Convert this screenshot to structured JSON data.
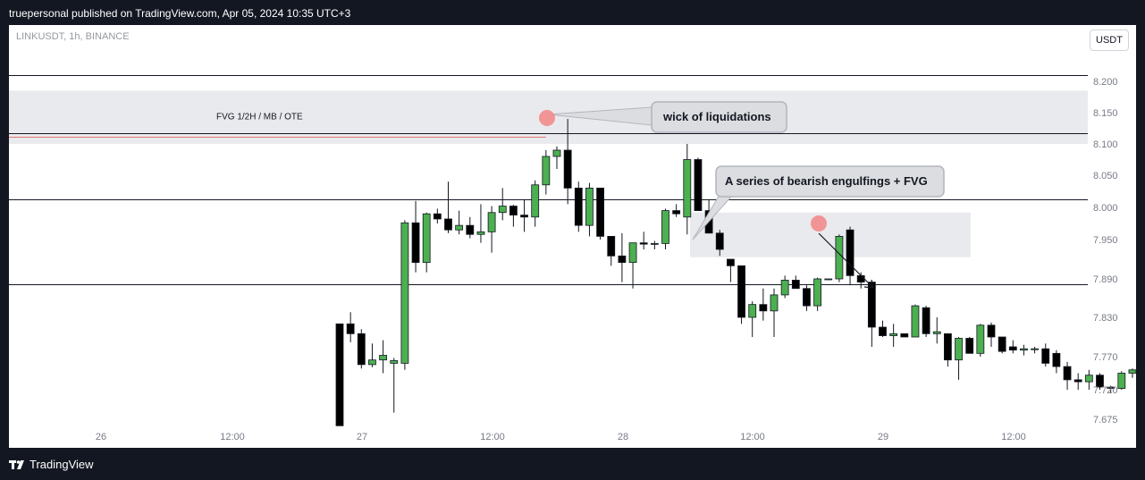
{
  "header": {
    "publish_line": "truepersonal published on TradingView.com, Apr 05, 2024 10:35 UTC+3"
  },
  "footer": {
    "brand": "TradingView"
  },
  "chart_data": {
    "type": "candlestick",
    "symbol_line": "LINKUSDT, 1h, BINANCE",
    "currency": "USDT",
    "y_ticks": [
      "8.200",
      "8.150",
      "8.100",
      "8.050",
      "8.000",
      "7.950",
      "7.890",
      "7.830",
      "7.770",
      "7.720",
      "7.675"
    ],
    "x_ticks": [
      "26",
      "12:00",
      "27",
      "12:00",
      "28",
      "12:00",
      "29",
      "12:00"
    ],
    "ylim": [
      7.675,
      8.2
    ],
    "grid": false,
    "horizontal_lines": [
      8.21,
      8.117,
      8.012,
      7.882
    ],
    "red_line": 8.112,
    "zones": [
      {
        "label": "FVG 1/2H / MB / OTE",
        "from": 8.1,
        "to": 8.185
      },
      {
        "label": "",
        "from": 7.923,
        "to": 7.992
      }
    ],
    "annotations": [
      {
        "text": "wick of liquidations"
      },
      {
        "text": "A series of bearish engulfings + FVG"
      }
    ],
    "candles": [
      [
        7.82,
        7.82,
        7.665,
        7.665
      ],
      [
        7.82,
        7.838,
        7.792,
        7.805
      ],
      [
        7.805,
        7.812,
        7.752,
        7.758
      ],
      [
        7.758,
        7.79,
        7.754,
        7.765
      ],
      [
        7.765,
        7.795,
        7.745,
        7.772
      ],
      [
        7.76,
        7.768,
        7.685,
        7.764
      ],
      [
        7.76,
        7.98,
        7.75,
        7.976
      ],
      [
        7.976,
        8.01,
        7.9,
        7.915
      ],
      [
        7.915,
        7.992,
        7.9,
        7.99
      ],
      [
        7.99,
        7.998,
        7.975,
        7.982
      ],
      [
        7.982,
        8.04,
        7.96,
        7.965
      ],
      [
        7.965,
        7.995,
        7.958,
        7.972
      ],
      [
        7.972,
        7.985,
        7.952,
        7.958
      ],
      [
        7.958,
        8.005,
        7.945,
        7.962
      ],
      [
        7.962,
        8.002,
        7.93,
        7.992
      ],
      [
        7.992,
        8.03,
        7.98,
        8.002
      ],
      [
        8.002,
        8.004,
        7.97,
        7.988
      ],
      [
        7.988,
        8.012,
        7.962,
        7.985
      ],
      [
        7.985,
        8.042,
        7.97,
        8.035
      ],
      [
        8.035,
        8.09,
        8.02,
        8.08
      ],
      [
        8.08,
        8.096,
        8.06,
        8.09
      ],
      [
        8.09,
        8.14,
        8.005,
        8.03
      ],
      [
        8.03,
        8.04,
        7.962,
        7.972
      ],
      [
        7.972,
        8.038,
        7.955,
        8.03
      ],
      [
        8.03,
        8.03,
        7.95,
        7.955
      ],
      [
        7.955,
        7.955,
        7.91,
        7.925
      ],
      [
        7.925,
        7.96,
        7.885,
        7.915
      ],
      [
        7.915,
        7.94,
        7.875,
        7.945
      ],
      [
        7.945,
        7.962,
        7.935,
        7.943
      ],
      [
        7.943,
        7.948,
        7.935,
        7.944
      ],
      [
        7.944,
        7.998,
        7.935,
        7.995
      ],
      [
        7.995,
        8.005,
        7.985,
        7.99
      ],
      [
        7.985,
        8.1,
        7.958,
        8.075
      ],
      [
        8.075,
        8.078,
        7.995,
        7.995
      ],
      [
        7.995,
        8.012,
        7.96,
        7.96
      ],
      [
        7.96,
        7.965,
        7.925,
        7.935
      ],
      [
        7.92,
        7.92,
        7.885,
        7.91
      ],
      [
        7.91,
        7.91,
        7.82,
        7.83
      ],
      [
        7.83,
        7.855,
        7.8,
        7.85
      ],
      [
        7.85,
        7.875,
        7.825,
        7.84
      ],
      [
        7.84,
        7.875,
        7.8,
        7.865
      ],
      [
        7.865,
        7.895,
        7.86,
        7.888
      ],
      [
        7.888,
        7.895,
        7.875,
        7.875
      ],
      [
        7.875,
        7.88,
        7.84,
        7.848
      ],
      [
        7.848,
        7.892,
        7.84,
        7.89
      ],
      [
        7.89,
        7.89,
        7.888,
        7.89
      ],
      [
        7.89,
        7.958,
        7.885,
        7.955
      ],
      [
        7.965,
        7.97,
        7.88,
        7.895
      ],
      [
        7.895,
        7.9,
        7.875,
        7.885
      ],
      [
        7.885,
        7.885,
        7.785,
        7.815
      ],
      [
        7.815,
        7.825,
        7.8,
        7.802
      ],
      [
        7.802,
        7.82,
        7.785,
        7.805
      ],
      [
        7.805,
        7.805,
        7.8,
        7.8
      ],
      [
        7.8,
        7.85,
        7.8,
        7.848
      ],
      [
        7.845,
        7.848,
        7.8,
        7.805
      ],
      [
        7.805,
        7.83,
        7.79,
        7.808
      ],
      [
        7.805,
        7.805,
        7.755,
        7.765
      ],
      [
        7.765,
        7.8,
        7.735,
        7.798
      ],
      [
        7.798,
        7.8,
        7.775,
        7.775
      ],
      [
        7.775,
        7.82,
        7.77,
        7.818
      ],
      [
        7.818,
        7.822,
        7.785,
        7.8
      ],
      [
        7.8,
        7.8,
        7.775,
        7.778
      ],
      [
        7.785,
        7.795,
        7.775,
        7.78
      ],
      [
        7.78,
        7.788,
        7.772,
        7.782
      ],
      [
        7.782,
        7.785,
        7.775,
        7.782
      ],
      [
        7.782,
        7.79,
        7.755,
        7.76
      ],
      [
        7.775,
        7.78,
        7.745,
        7.755
      ],
      [
        7.755,
        7.762,
        7.72,
        7.735
      ],
      [
        7.735,
        7.745,
        7.72,
        7.732
      ],
      [
        7.732,
        7.75,
        7.72,
        7.742
      ],
      [
        7.742,
        7.745,
        7.72,
        7.724
      ],
      [
        7.724,
        7.726,
        7.715,
        7.722
      ],
      [
        7.722,
        7.748,
        7.72,
        7.745
      ],
      [
        7.745,
        7.752,
        7.738,
        7.75
      ],
      [
        7.75,
        7.76,
        7.738,
        7.74
      ],
      [
        7.74,
        7.76,
        7.735,
        7.758
      ]
    ]
  }
}
